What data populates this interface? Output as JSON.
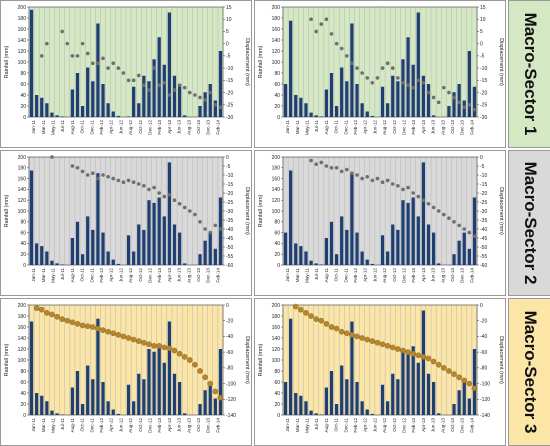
{
  "figure": {
    "sector_labels": [
      "Macro-Sector 1",
      "Macro-Sector 2",
      "Macro-Sector 3"
    ],
    "colors": {
      "bar": "#1f3f73",
      "point_grey": "#6e6e6e",
      "point_gold": "#b8862b",
      "bg_sector_1": "#d5e8c4",
      "bg_sector_2": "#d9d9d9",
      "bg_sector_3": "#fbe6a8",
      "grid": "#b5b5b5"
    }
  },
  "chart_data": [
    {
      "type": "bar",
      "sector": "Macro-Sector 1",
      "position": "left",
      "categories": [
        "Jan-11",
        "Feb-11",
        "Mar-11",
        "Apr-11",
        "May-11",
        "Jun-11",
        "Jul-11",
        "Aug-11",
        "Sep-11",
        "Oct-11",
        "Nov-11",
        "Dec-11",
        "Jan-12",
        "Feb-12",
        "Mar-12",
        "Apr-12",
        "May-12",
        "Jun-12",
        "Jul-12",
        "Aug-12",
        "Sep-12",
        "Oct-12",
        "Nov-12",
        "Dec-12",
        "Jan-13",
        "Feb-13",
        "Mar-13",
        "Apr-13",
        "May-13",
        "Jun-13",
        "Jul-13",
        "Aug-13",
        "Sep-13",
        "Oct-13",
        "Nov-13",
        "Dec-13",
        "Jan-14",
        "Feb-14"
      ],
      "tick_labels": [
        "Jan-11",
        "Mar-11",
        "May-11",
        "Jul-11",
        "Aug-11",
        "Oct-11",
        "Dec-11",
        "Feb-12",
        "Apr-12",
        "Jun-12",
        "Aug-12",
        "Oct-12",
        "Dec-12",
        "Feb-13",
        "Apr-13",
        "Jun-13",
        "Aug-13",
        "Oct-13",
        "Dec-13",
        "Feb-14"
      ],
      "series": [
        {
          "values": [
            195,
            40,
            35,
            25,
            8,
            3,
            1,
            0,
            50,
            80,
            20,
            90,
            65,
            170,
            60,
            25,
            10,
            2,
            0,
            1,
            55,
            25,
            75,
            65,
            105,
            145,
            95,
            190,
            75,
            60,
            3,
            0,
            0,
            20,
            45,
            60,
            30,
            120
          ]
        },
        {
          "values": [
            null,
            null,
            -5,
            0,
            null,
            null,
            5,
            0,
            -5,
            -5,
            0,
            -4,
            -8,
            -8,
            -6,
            -10,
            -8,
            -10,
            -12,
            -15,
            -15,
            -13,
            -17,
            -19,
            -10,
            -17,
            -16,
            -21,
            -19,
            -17,
            -18,
            -20,
            -21,
            -22,
            -23,
            -20,
            -25,
            -26
          ]
        }
      ],
      "ylabel": "Rainfall (mm)",
      "y2label": "Displacement (mm)",
      "ylim": [
        0,
        200
      ],
      "y2lim": [
        -30,
        15
      ],
      "yticks": [
        0,
        20,
        40,
        60,
        80,
        100,
        120,
        140,
        160,
        180,
        200
      ],
      "y2ticks": [
        -30,
        -25,
        -20,
        -15,
        -10,
        -5,
        0,
        5,
        10,
        15
      ],
      "grid": true
    },
    {
      "type": "bar",
      "sector": "Macro-Sector 1",
      "position": "right",
      "categories": [
        "Jan-11",
        "Feb-11",
        "Mar-11",
        "Apr-11",
        "May-11",
        "Jun-11",
        "Jul-11",
        "Aug-11",
        "Sep-11",
        "Oct-11",
        "Nov-11",
        "Dec-11",
        "Jan-12",
        "Feb-12",
        "Mar-12",
        "Apr-12",
        "May-12",
        "Jun-12",
        "Jul-12",
        "Aug-12",
        "Sep-12",
        "Oct-12",
        "Nov-12",
        "Dec-12",
        "Jan-13",
        "Feb-13",
        "Mar-13",
        "Apr-13",
        "May-13",
        "Jun-13",
        "Jul-13",
        "Aug-13",
        "Sep-13",
        "Oct-13",
        "Nov-13",
        "Dec-13",
        "Jan-14",
        "Feb-14"
      ],
      "tick_labels": [
        "Jan-11",
        "Mar-11",
        "May-11",
        "Jul-11",
        "Aug-11",
        "Oct-11",
        "Dec-11",
        "Feb-12",
        "Apr-12",
        "Jun-12",
        "Aug-12",
        "Oct-12",
        "Dec-12",
        "Feb-13",
        "Apr-13",
        "Jun-13",
        "Aug-13",
        "Oct-13",
        "Dec-13",
        "Feb-14"
      ],
      "series": [
        {
          "values": [
            60,
            175,
            40,
            35,
            25,
            8,
            3,
            1,
            50,
            80,
            20,
            90,
            65,
            170,
            60,
            25,
            10,
            2,
            0,
            55,
            25,
            75,
            65,
            105,
            145,
            95,
            190,
            75,
            60,
            3,
            0,
            0,
            20,
            45,
            60,
            30,
            120,
            55
          ]
        },
        {
          "values": [
            null,
            null,
            null,
            null,
            null,
            10,
            5,
            8,
            10,
            4,
            0,
            -2,
            -5,
            -8,
            -10,
            -12,
            -14,
            -16,
            -14,
            -10,
            -8,
            -10,
            -14,
            -16,
            -17,
            -18,
            -15,
            -16,
            -20,
            -22,
            -24,
            -18,
            -20,
            -22,
            -24,
            -26,
            -25,
            -27
          ]
        }
      ],
      "ylabel": "Rainfall (mm)",
      "y2label": "Displacement (mm)",
      "ylim": [
        0,
        200
      ],
      "y2lim": [
        -30,
        15
      ],
      "yticks": [
        0,
        20,
        40,
        60,
        80,
        100,
        120,
        140,
        160,
        180,
        200
      ],
      "y2ticks": [
        -30,
        -25,
        -20,
        -15,
        -10,
        -5,
        0,
        5,
        10,
        15
      ],
      "grid": true
    },
    {
      "type": "bar",
      "sector": "Macro-Sector 2",
      "position": "left",
      "categories": [
        "Jan-11",
        "Feb-11",
        "Mar-11",
        "Apr-11",
        "May-11",
        "Jun-11",
        "Jul-11",
        "Aug-11",
        "Sep-11",
        "Oct-11",
        "Nov-11",
        "Dec-11",
        "Jan-12",
        "Feb-12",
        "Mar-12",
        "Apr-12",
        "May-12",
        "Jun-12",
        "Jul-12",
        "Aug-12",
        "Sep-12",
        "Oct-12",
        "Nov-12",
        "Dec-12",
        "Jan-13",
        "Feb-13",
        "Mar-13",
        "Apr-13",
        "May-13",
        "Jun-13",
        "Jul-13",
        "Aug-13",
        "Sep-13",
        "Oct-13",
        "Nov-13",
        "Dec-13",
        "Jan-14",
        "Feb-14"
      ],
      "tick_labels": [
        "Jan-11",
        "Mar-11",
        "May-11",
        "Jul-11",
        "Aug-11",
        "Oct-11",
        "Dec-11",
        "Feb-12",
        "Apr-12",
        "Jun-12",
        "Aug-12",
        "Oct-12",
        "Dec-12",
        "Feb-13",
        "Apr-13",
        "Jun-13",
        "Aug-13",
        "Oct-13",
        "Dec-13",
        "Feb-14"
      ],
      "series": [
        {
          "values": [
            175,
            40,
            35,
            25,
            8,
            3,
            1,
            0,
            50,
            80,
            20,
            90,
            65,
            170,
            60,
            25,
            10,
            2,
            0,
            55,
            25,
            75,
            65,
            120,
            115,
            125,
            90,
            190,
            75,
            60,
            3,
            0,
            0,
            20,
            45,
            60,
            30,
            125
          ]
        },
        {
          "values": [
            null,
            null,
            null,
            null,
            0,
            null,
            null,
            null,
            -5,
            -6,
            -8,
            -10,
            -9,
            -12,
            -10,
            -11,
            -12,
            -13,
            -14,
            -13,
            -14,
            -15,
            -16,
            -18,
            -17,
            -20,
            -22,
            -21,
            -24,
            -26,
            -28,
            -30,
            -32,
            -36,
            -40,
            -42,
            -38,
            -40
          ]
        }
      ],
      "ylabel": "Rainfall (mm)",
      "y2label": "Displacement (mm)",
      "ylim": [
        0,
        200
      ],
      "y2lim": [
        -60,
        0
      ],
      "yticks": [
        0,
        20,
        40,
        60,
        80,
        100,
        120,
        140,
        160,
        180,
        200
      ],
      "y2ticks": [
        -60,
        -55,
        -50,
        -45,
        -40,
        -35,
        -30,
        -25,
        -20,
        -15,
        -10,
        -5,
        0
      ],
      "grid": true
    },
    {
      "type": "bar",
      "sector": "Macro-Sector 2",
      "position": "right",
      "categories": [
        "Jan-11",
        "Feb-11",
        "Mar-11",
        "Apr-11",
        "May-11",
        "Jun-11",
        "Jul-11",
        "Aug-11",
        "Sep-11",
        "Oct-11",
        "Nov-11",
        "Dec-11",
        "Jan-12",
        "Feb-12",
        "Mar-12",
        "Apr-12",
        "May-12",
        "Jun-12",
        "Jul-12",
        "Aug-12",
        "Sep-12",
        "Oct-12",
        "Nov-12",
        "Dec-12",
        "Jan-13",
        "Feb-13",
        "Mar-13",
        "Apr-13",
        "May-13",
        "Jun-13",
        "Jul-13",
        "Aug-13",
        "Sep-13",
        "Oct-13",
        "Nov-13",
        "Dec-13",
        "Jan-14",
        "Feb-14"
      ],
      "tick_labels": [
        "Jan-11",
        "Mar-11",
        "May-11",
        "Jul-11",
        "Aug-11",
        "Oct-11",
        "Dec-11",
        "Feb-12",
        "Apr-12",
        "Jun-12",
        "Aug-12",
        "Oct-12",
        "Dec-12",
        "Feb-13",
        "Apr-13",
        "Jun-13",
        "Aug-13",
        "Oct-13",
        "Dec-13",
        "Feb-14"
      ],
      "series": [
        {
          "values": [
            60,
            175,
            40,
            35,
            25,
            8,
            3,
            1,
            50,
            80,
            20,
            90,
            65,
            170,
            60,
            25,
            10,
            2,
            0,
            55,
            25,
            75,
            65,
            120,
            115,
            125,
            90,
            190,
            75,
            60,
            3,
            0,
            0,
            20,
            45,
            60,
            30,
            125
          ]
        },
        {
          "values": [
            null,
            null,
            null,
            null,
            null,
            -2,
            -4,
            -3,
            -5,
            -6,
            -6,
            -8,
            -7,
            -9,
            -10,
            -12,
            -11,
            -13,
            -12,
            -14,
            -13,
            -15,
            -16,
            -18,
            -17,
            -20,
            -22,
            -24,
            -26,
            -28,
            -30,
            -32,
            -34,
            -36,
            -38,
            -40,
            -42,
            -44
          ]
        }
      ],
      "ylabel": "Rainfall (mm)",
      "y2label": "Displacement (mm)",
      "ylim": [
        0,
        200
      ],
      "y2lim": [
        -60,
        0
      ],
      "yticks": [
        0,
        20,
        40,
        60,
        80,
        100,
        120,
        140,
        160,
        180,
        200
      ],
      "y2ticks": [
        -60,
        -55,
        -50,
        -45,
        -40,
        -35,
        -30,
        -25,
        -20,
        -15,
        -10,
        -5,
        0
      ],
      "grid": true
    },
    {
      "type": "bar",
      "sector": "Macro-Sector 3",
      "position": "left",
      "categories": [
        "Jan-11",
        "Feb-11",
        "Mar-11",
        "Apr-11",
        "May-11",
        "Jun-11",
        "Jul-11",
        "Aug-11",
        "Sep-11",
        "Oct-11",
        "Nov-11",
        "Dec-11",
        "Jan-12",
        "Feb-12",
        "Mar-12",
        "Apr-12",
        "May-12",
        "Jun-12",
        "Jul-12",
        "Aug-12",
        "Sep-12",
        "Oct-12",
        "Nov-12",
        "Dec-12",
        "Jan-13",
        "Feb-13",
        "Mar-13",
        "Apr-13",
        "May-13",
        "Jun-13",
        "Jul-13",
        "Aug-13",
        "Sep-13",
        "Oct-13",
        "Nov-13",
        "Dec-13",
        "Jan-14",
        "Feb-14"
      ],
      "tick_labels": [
        "Jan-11",
        "Mar-11",
        "May-11",
        "Jul-11",
        "Aug-11",
        "Oct-11",
        "Dec-11",
        "Feb-12",
        "Apr-12",
        "Jun-12",
        "Aug-12",
        "Oct-12",
        "Dec-12",
        "Feb-13",
        "Apr-13",
        "Jun-13",
        "Aug-13",
        "Oct-13",
        "Dec-13",
        "Feb-14"
      ],
      "series": [
        {
          "values": [
            170,
            40,
            35,
            25,
            8,
            3,
            1,
            0,
            50,
            80,
            20,
            90,
            65,
            175,
            60,
            25,
            10,
            2,
            0,
            55,
            25,
            75,
            65,
            120,
            115,
            125,
            95,
            170,
            75,
            60,
            3,
            0,
            0,
            20,
            45,
            60,
            30,
            120
          ]
        },
        {
          "values": [
            null,
            -4,
            -6,
            -10,
            -12,
            -15,
            -18,
            -20,
            -22,
            -24,
            -26,
            -27,
            -28,
            -30,
            -32,
            -34,
            -36,
            -38,
            -40,
            -42,
            -44,
            -46,
            -48,
            -50,
            -52,
            -52,
            -54,
            -55,
            -58,
            -62,
            -66,
            -70,
            -76,
            -84,
            -92,
            -100,
            -110,
            -118
          ]
        }
      ],
      "ylabel": "Rainfall (mm)",
      "y2label": "Displacement (mm)",
      "ylim": [
        0,
        200
      ],
      "y2lim": [
        -140,
        0
      ],
      "yticks": [
        0,
        20,
        40,
        60,
        80,
        100,
        120,
        140,
        160,
        180,
        200
      ],
      "y2ticks": [
        -140,
        -120,
        -100,
        -80,
        -60,
        -40,
        -20,
        0
      ],
      "grid": true
    },
    {
      "type": "bar",
      "sector": "Macro-Sector 3",
      "position": "right",
      "categories": [
        "Jan-11",
        "Feb-11",
        "Mar-11",
        "Apr-11",
        "May-11",
        "Jun-11",
        "Jul-11",
        "Aug-11",
        "Sep-11",
        "Oct-11",
        "Nov-11",
        "Dec-11",
        "Jan-12",
        "Feb-12",
        "Mar-12",
        "Apr-12",
        "May-12",
        "Jun-12",
        "Jul-12",
        "Aug-12",
        "Sep-12",
        "Oct-12",
        "Nov-12",
        "Dec-12",
        "Jan-13",
        "Feb-13",
        "Mar-13",
        "Apr-13",
        "May-13",
        "Jun-13",
        "Jul-13",
        "Aug-13",
        "Sep-13",
        "Oct-13",
        "Nov-13",
        "Dec-13",
        "Jan-14",
        "Feb-14"
      ],
      "tick_labels": [
        "Jan-11",
        "Mar-11",
        "May-11",
        "Jul-11",
        "Aug-11",
        "Oct-11",
        "Dec-11",
        "Feb-12",
        "Apr-12",
        "Jun-12",
        "Aug-12",
        "Oct-12",
        "Dec-12",
        "Feb-13",
        "Apr-13",
        "Jun-13",
        "Aug-13",
        "Oct-13",
        "Dec-13",
        "Feb-14"
      ],
      "series": [
        {
          "values": [
            60,
            175,
            40,
            35,
            25,
            8,
            3,
            1,
            50,
            80,
            20,
            90,
            65,
            170,
            60,
            25,
            10,
            2,
            0,
            55,
            25,
            75,
            65,
            120,
            115,
            125,
            95,
            190,
            75,
            60,
            3,
            0,
            0,
            20,
            45,
            60,
            30,
            120
          ]
        },
        {
          "values": [
            null,
            null,
            -2,
            -6,
            -10,
            -14,
            -18,
            -20,
            -24,
            -28,
            -30,
            -34,
            -36,
            -38,
            -40,
            -42,
            -44,
            -46,
            -48,
            -50,
            -52,
            -54,
            -56,
            -58,
            -60,
            -62,
            -64,
            -66,
            -68,
            -72,
            -76,
            -80,
            -84,
            -88,
            -92,
            -96,
            -100,
            -106
          ]
        }
      ],
      "ylabel": "Rainfall (mm)",
      "y2label": "Displacement (mm)",
      "ylim": [
        0,
        200
      ],
      "y2lim": [
        -140,
        0
      ],
      "yticks": [
        0,
        20,
        40,
        60,
        80,
        100,
        120,
        140,
        160,
        180,
        200
      ],
      "y2ticks": [
        -140,
        -120,
        -100,
        -80,
        -60,
        -40,
        -20,
        0
      ],
      "grid": true
    }
  ]
}
